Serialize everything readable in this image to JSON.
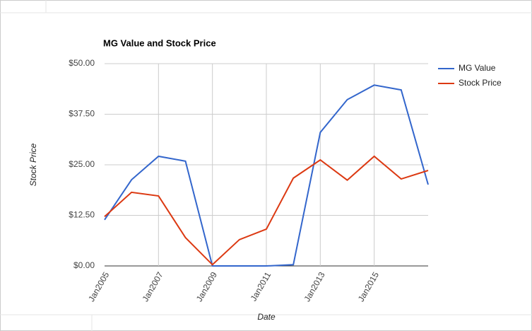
{
  "chart_data": {
    "type": "line",
    "title": "MG Value and Stock Price",
    "x_label": "Date",
    "y_label": "Stock Price",
    "categories": [
      "Jan2005",
      null,
      "Jan2007",
      null,
      "Jan2009",
      null,
      "Jan2011",
      null,
      "Jan2013",
      null,
      "Jan2015",
      null,
      null
    ],
    "series": [
      {
        "name": "MG Value",
        "color": "#3366cc",
        "values": [
          11.4,
          21.3,
          27.1,
          25.9,
          0,
          0,
          0,
          0.3,
          33.0,
          41.1,
          44.7,
          43.5,
          20.1
        ]
      },
      {
        "name": "Stock Price",
        "color": "#dc3912",
        "values": [
          12.2,
          18.2,
          17.3,
          7.0,
          0.3,
          6.5,
          9.1,
          21.7,
          26.2,
          21.2,
          27.1,
          21.5,
          23.6
        ]
      }
    ],
    "ylim": [
      0,
      50
    ],
    "yticks": [
      {
        "value": 0,
        "label": "$0.00"
      },
      {
        "value": 12.5,
        "label": "$12.50"
      },
      {
        "value": 25,
        "label": "$25.00"
      },
      {
        "value": 37.5,
        "label": "$37.50"
      },
      {
        "value": 50,
        "label": "$50.00"
      }
    ],
    "grid": true,
    "legend": "right"
  }
}
